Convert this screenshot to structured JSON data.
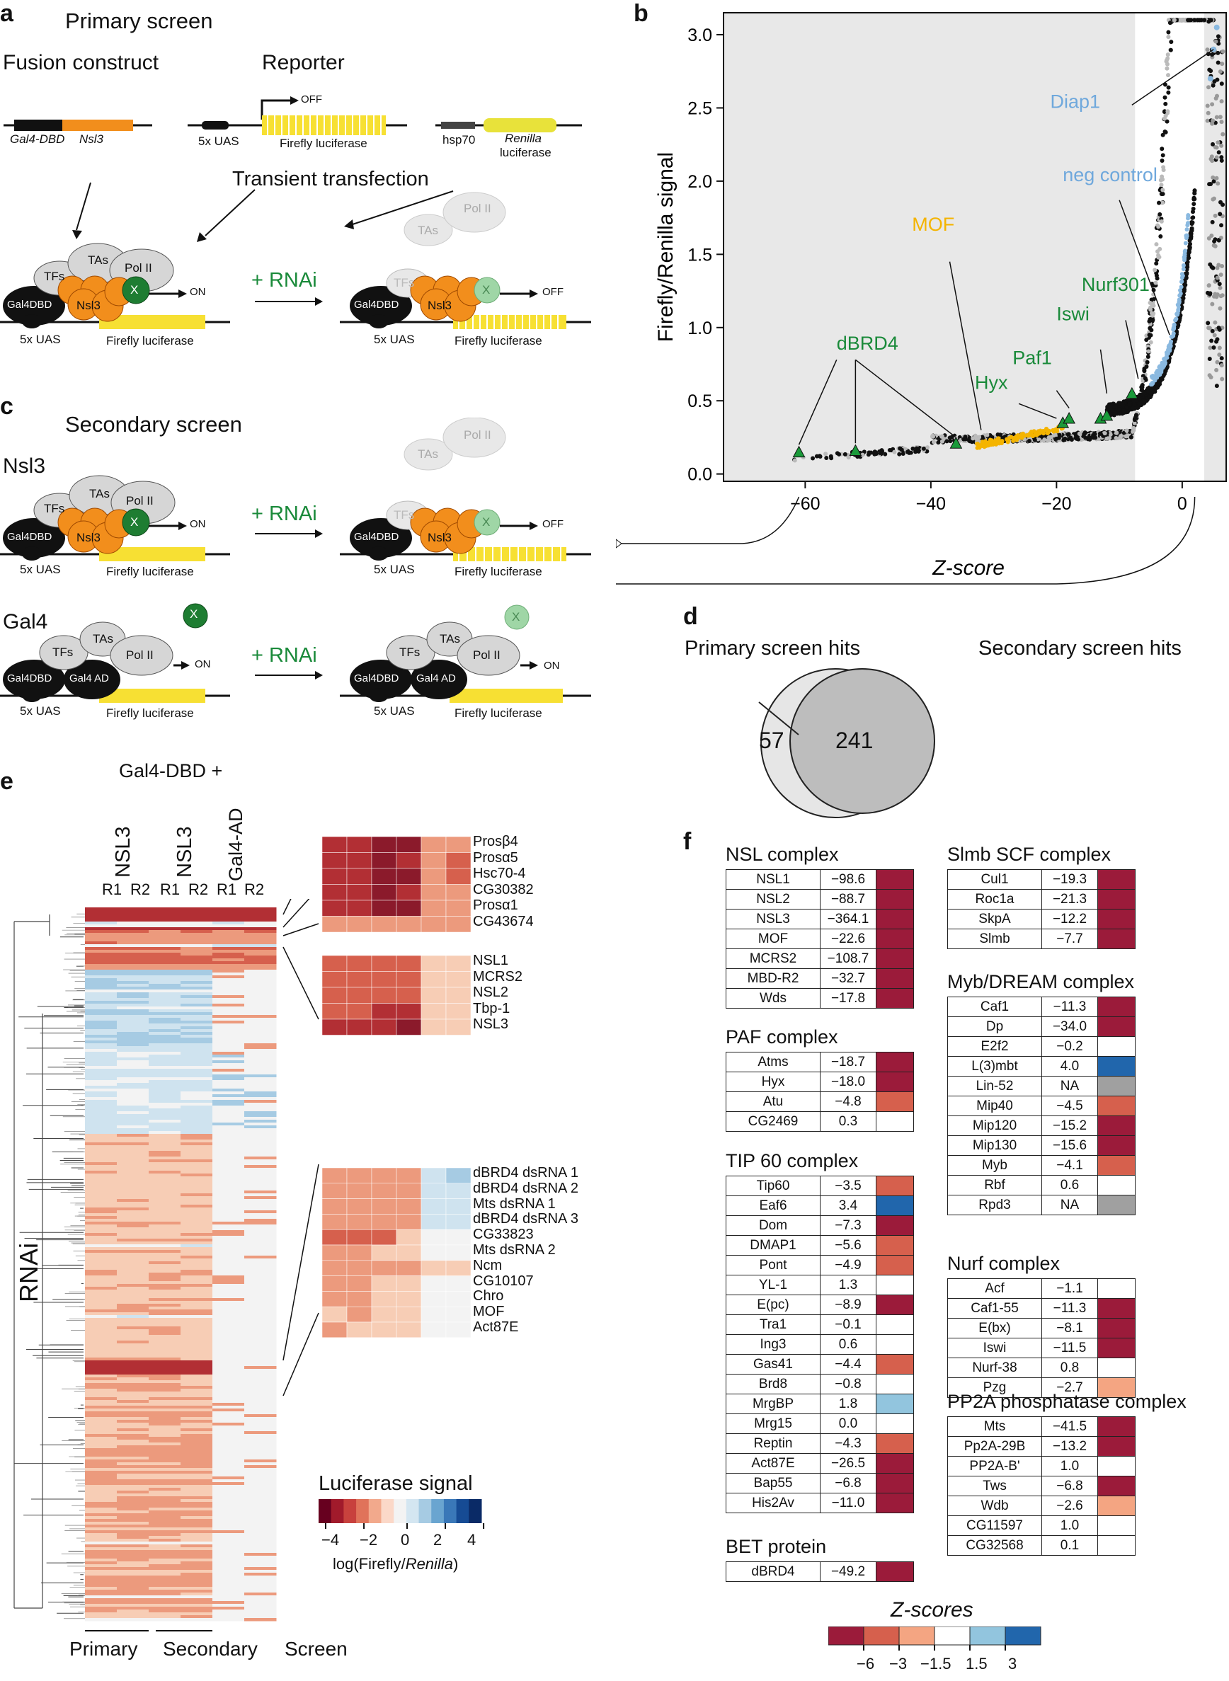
{
  "panels": {
    "a": "a",
    "b": "b",
    "c": "c",
    "d": "d",
    "e": "e",
    "f": "f"
  },
  "panel_a": {
    "title": "Primary screen",
    "fusion_construct": "Fusion construct",
    "reporter": "Reporter",
    "gal4dbd": "Gal4-DBD",
    "nsl3": "Nsl3",
    "uas": "5x UAS",
    "off": "OFF",
    "on": "ON",
    "firefly": "Firefly luciferase",
    "hsp70": "hsp70",
    "renilla": "Renilla",
    "luciferase": "luciferase",
    "transient": "Transient transfection",
    "rnai": "+ RNAi",
    "tfs": "TFs",
    "tas": "TAs",
    "pol2": "Pol II",
    "x": "X",
    "gal4dbd_node": "Gal4DBD",
    "nsl3_node": "Nsl3"
  },
  "panel_c": {
    "title": "Secondary screen",
    "row1": "Nsl3",
    "row2": "Gal4",
    "gal4ad": "Gal4 AD",
    "rnai": "+ RNAi"
  },
  "panel_d": {
    "primary": "Primary screen hits",
    "secondary": "Secondary screen hits",
    "primary_only": "57",
    "secondary_count": "241"
  },
  "panel_e": {
    "header": "Gal4-DBD +",
    "columns": [
      "NSL3",
      "NSL3",
      "Gal4-AD"
    ],
    "reps": [
      "R1",
      "R2",
      "R1",
      "R2",
      "R1",
      "R2"
    ],
    "y_label": "RNAi",
    "bottom": [
      "Primary",
      "Secondary",
      "Screen"
    ],
    "zoom1": [
      "Prosβ4",
      "Prosα5",
      "Hsc70-4",
      "CG30382",
      "Prosα1",
      "CG43674"
    ],
    "zoom2": [
      "NSL1",
      "MCRS2",
      "NSL2",
      "Tbp-1",
      "NSL3"
    ],
    "zoom3": [
      "dBRD4 dsRNA 1",
      "dBRD4 dsRNA 2",
      "Mts dsRNA 1",
      "dBRD4 dsRNA 3",
      "CG33823",
      "Mts dsRNA 2",
      "Ncm",
      "CG10107",
      "Chro",
      "MOF",
      "Act87E"
    ],
    "legend_title": "Luciferase signal",
    "legend_ticks": [
      "−4",
      "−2",
      "0",
      "2",
      "4"
    ],
    "legend_xlabel": "log(Firefly/",
    "legend_xlabel_it": "Renilla",
    "legend_xlabel_end": ")",
    "legend_colors": [
      "#67001f",
      "#a11a2b",
      "#c8413d",
      "#e0735a",
      "#f2a98c",
      "#fbd8c8",
      "#f3f3f3",
      "#d4e6f1",
      "#a6cbe3",
      "#6aa5d0",
      "#3a78b8",
      "#164b94",
      "#0a2a66"
    ]
  },
  "panel_f": {
    "legend_title": "Z-scores",
    "legend_ticks": [
      "−6",
      "−3",
      "−1.5",
      "1.5",
      "3"
    ],
    "colors": {
      "deep": "#9b1b3a",
      "mid": "#d6604d",
      "light": "#f4a582",
      "white": "#ffffff",
      "lblue": "#92c5de",
      "blue": "#2166ac",
      "na": "#a0a0a0"
    },
    "tables": [
      {
        "title": "NSL complex",
        "rows": [
          [
            "NSL1",
            "−98.6",
            "deep"
          ],
          [
            "NSL2",
            "−88.7",
            "deep"
          ],
          [
            "NSL3",
            "−364.1",
            "deep"
          ],
          [
            "MOF",
            "−22.6",
            "deep"
          ],
          [
            "MCRS2",
            "−108.7",
            "deep"
          ],
          [
            "MBD-R2",
            "−32.7",
            "deep"
          ],
          [
            "Wds",
            "−17.8",
            "deep"
          ]
        ]
      },
      {
        "title": "PAF complex",
        "rows": [
          [
            "Atms",
            "−18.7",
            "deep"
          ],
          [
            "Hyx",
            "−18.0",
            "deep"
          ],
          [
            "Atu",
            "−4.8",
            "mid"
          ],
          [
            "CG2469",
            "0.3",
            "white"
          ]
        ]
      },
      {
        "title": "TIP 60 complex",
        "rows": [
          [
            "Tip60",
            "−3.5",
            "mid"
          ],
          [
            "Eaf6",
            "3.4",
            "blue"
          ],
          [
            "Dom",
            "−7.3",
            "deep"
          ],
          [
            "DMAP1",
            "−5.6",
            "mid"
          ],
          [
            "Pont",
            "−4.9",
            "mid"
          ],
          [
            "YL-1",
            "1.3",
            "white"
          ],
          [
            "E(pc)",
            "−8.9",
            "deep"
          ],
          [
            "Tra1",
            "−0.1",
            "white"
          ],
          [
            "Ing3",
            "0.6",
            "white"
          ],
          [
            "Gas41",
            "−4.4",
            "mid"
          ],
          [
            "Brd8",
            "−0.8",
            "white"
          ],
          [
            "MrgBP",
            "1.8",
            "lblue"
          ],
          [
            "Mrg15",
            "0.0",
            "white"
          ],
          [
            "Reptin",
            "−4.3",
            "mid"
          ],
          [
            "Act87E",
            "−26.5",
            "deep"
          ],
          [
            "Bap55",
            "−6.8",
            "deep"
          ],
          [
            "His2Av",
            "−11.0",
            "deep"
          ]
        ]
      },
      {
        "title": "BET protein",
        "rows": [
          [
            "dBRD4",
            "−49.2",
            "deep"
          ]
        ]
      },
      {
        "title": "Slmb SCF complex",
        "rows": [
          [
            "Cul1",
            "−19.3",
            "deep"
          ],
          [
            "Roc1a",
            "−21.3",
            "deep"
          ],
          [
            "SkpA",
            "−12.2",
            "deep"
          ],
          [
            "Slmb",
            "−7.7",
            "deep"
          ]
        ]
      },
      {
        "title": "Myb/DREAM complex",
        "rows": [
          [
            "Caf1",
            "−11.3",
            "deep"
          ],
          [
            "Dp",
            "−34.0",
            "deep"
          ],
          [
            "E2f2",
            "−0.2",
            "white"
          ],
          [
            "L(3)mbt",
            "4.0",
            "blue"
          ],
          [
            "Lin-52",
            "NA",
            "na"
          ],
          [
            "Mip40",
            "−4.5",
            "mid"
          ],
          [
            "Mip120",
            "−15.2",
            "deep"
          ],
          [
            "Mip130",
            "−15.6",
            "deep"
          ],
          [
            "Myb",
            "−4.1",
            "mid"
          ],
          [
            "Rbf",
            "0.6",
            "white"
          ],
          [
            "Rpd3",
            "NA",
            "na"
          ]
        ]
      },
      {
        "title": "Nurf complex",
        "rows": [
          [
            "Acf",
            "−1.1",
            "white"
          ],
          [
            "Caf1-55",
            "−11.3",
            "deep"
          ],
          [
            "E(bx)",
            "−8.1",
            "deep"
          ],
          [
            "Iswi",
            "−11.5",
            "deep"
          ],
          [
            "Nurf-38",
            "0.8",
            "white"
          ],
          [
            "Pzg",
            "−2.7",
            "light"
          ]
        ]
      },
      {
        "title": "PP2A phosphatase complex",
        "rows": [
          [
            "Mts",
            "−41.5",
            "deep"
          ],
          [
            "Pp2A-29B",
            "−13.2",
            "deep"
          ],
          [
            "PP2A-B'",
            "1.0",
            "white"
          ],
          [
            "Tws",
            "−6.8",
            "deep"
          ],
          [
            "Wdb",
            "−2.6",
            "light"
          ],
          [
            "CG11597",
            "1.0",
            "white"
          ],
          [
            "CG32568",
            "0.1",
            "white"
          ]
        ]
      }
    ]
  },
  "chart_data": {
    "type": "scatter",
    "title": "",
    "xlabel": "Z-score",
    "ylabel": "Firefly/Renilla signal",
    "xlim": [
      -73,
      7
    ],
    "ylim": [
      -0.05,
      3.15
    ],
    "xticks": [
      -60,
      -40,
      -20,
      0
    ],
    "yticks": [
      0.0,
      0.5,
      1.0,
      1.5,
      2.0,
      2.5,
      3.0
    ],
    "xtick_labels": [
      "−60",
      "−40",
      "−20",
      "0"
    ],
    "ytick_labels": [
      "0.0",
      "0.5",
      "1.0",
      "1.5",
      "2.0",
      "2.5",
      "3.0"
    ],
    "shaded_ranges": [
      [
        -73,
        -7.5
      ],
      [
        3.5,
        7
      ]
    ],
    "series": [
      {
        "name": "hits (dBRD4 etc.)",
        "marker": "triangle",
        "color": "#1a9a3a",
        "points": [
          [
            -61,
            0.15
          ],
          [
            -52,
            0.16
          ],
          [
            -36,
            0.21
          ],
          [
            -19,
            0.35
          ],
          [
            -18,
            0.38
          ],
          [
            -13,
            0.38
          ],
          [
            -12,
            0.4
          ],
          [
            -8,
            0.55
          ]
        ]
      },
      {
        "name": "MOF cluster",
        "marker": "circle",
        "color": "#f4b400",
        "range_x": [
          -33,
          -19
        ]
      },
      {
        "name": "neg control",
        "marker": "circle",
        "color": "#8ab9e0",
        "range_x": [
          -5,
          1
        ]
      },
      {
        "name": "Diap1",
        "marker": "circle",
        "color": "#8ab9e0",
        "points": [
          [
            4.5,
            2.7
          ],
          [
            5,
            2.9
          ],
          [
            5.5,
            3.05
          ]
        ]
      }
    ],
    "annotations": [
      {
        "text": "Diap1",
        "color": "#6fa8dc"
      },
      {
        "text": "neg control",
        "color": "#6fa8dc"
      },
      {
        "text": "MOF",
        "color": "#f4b400"
      },
      {
        "text": "Nurf301",
        "color": "#1a8a3a"
      },
      {
        "text": "Iswi",
        "color": "#1a8a3a"
      },
      {
        "text": "Paf1",
        "color": "#1a8a3a"
      },
      {
        "text": "Hyx",
        "color": "#1a8a3a"
      },
      {
        "text": "dBRD4",
        "color": "#1a8a3a"
      }
    ]
  }
}
